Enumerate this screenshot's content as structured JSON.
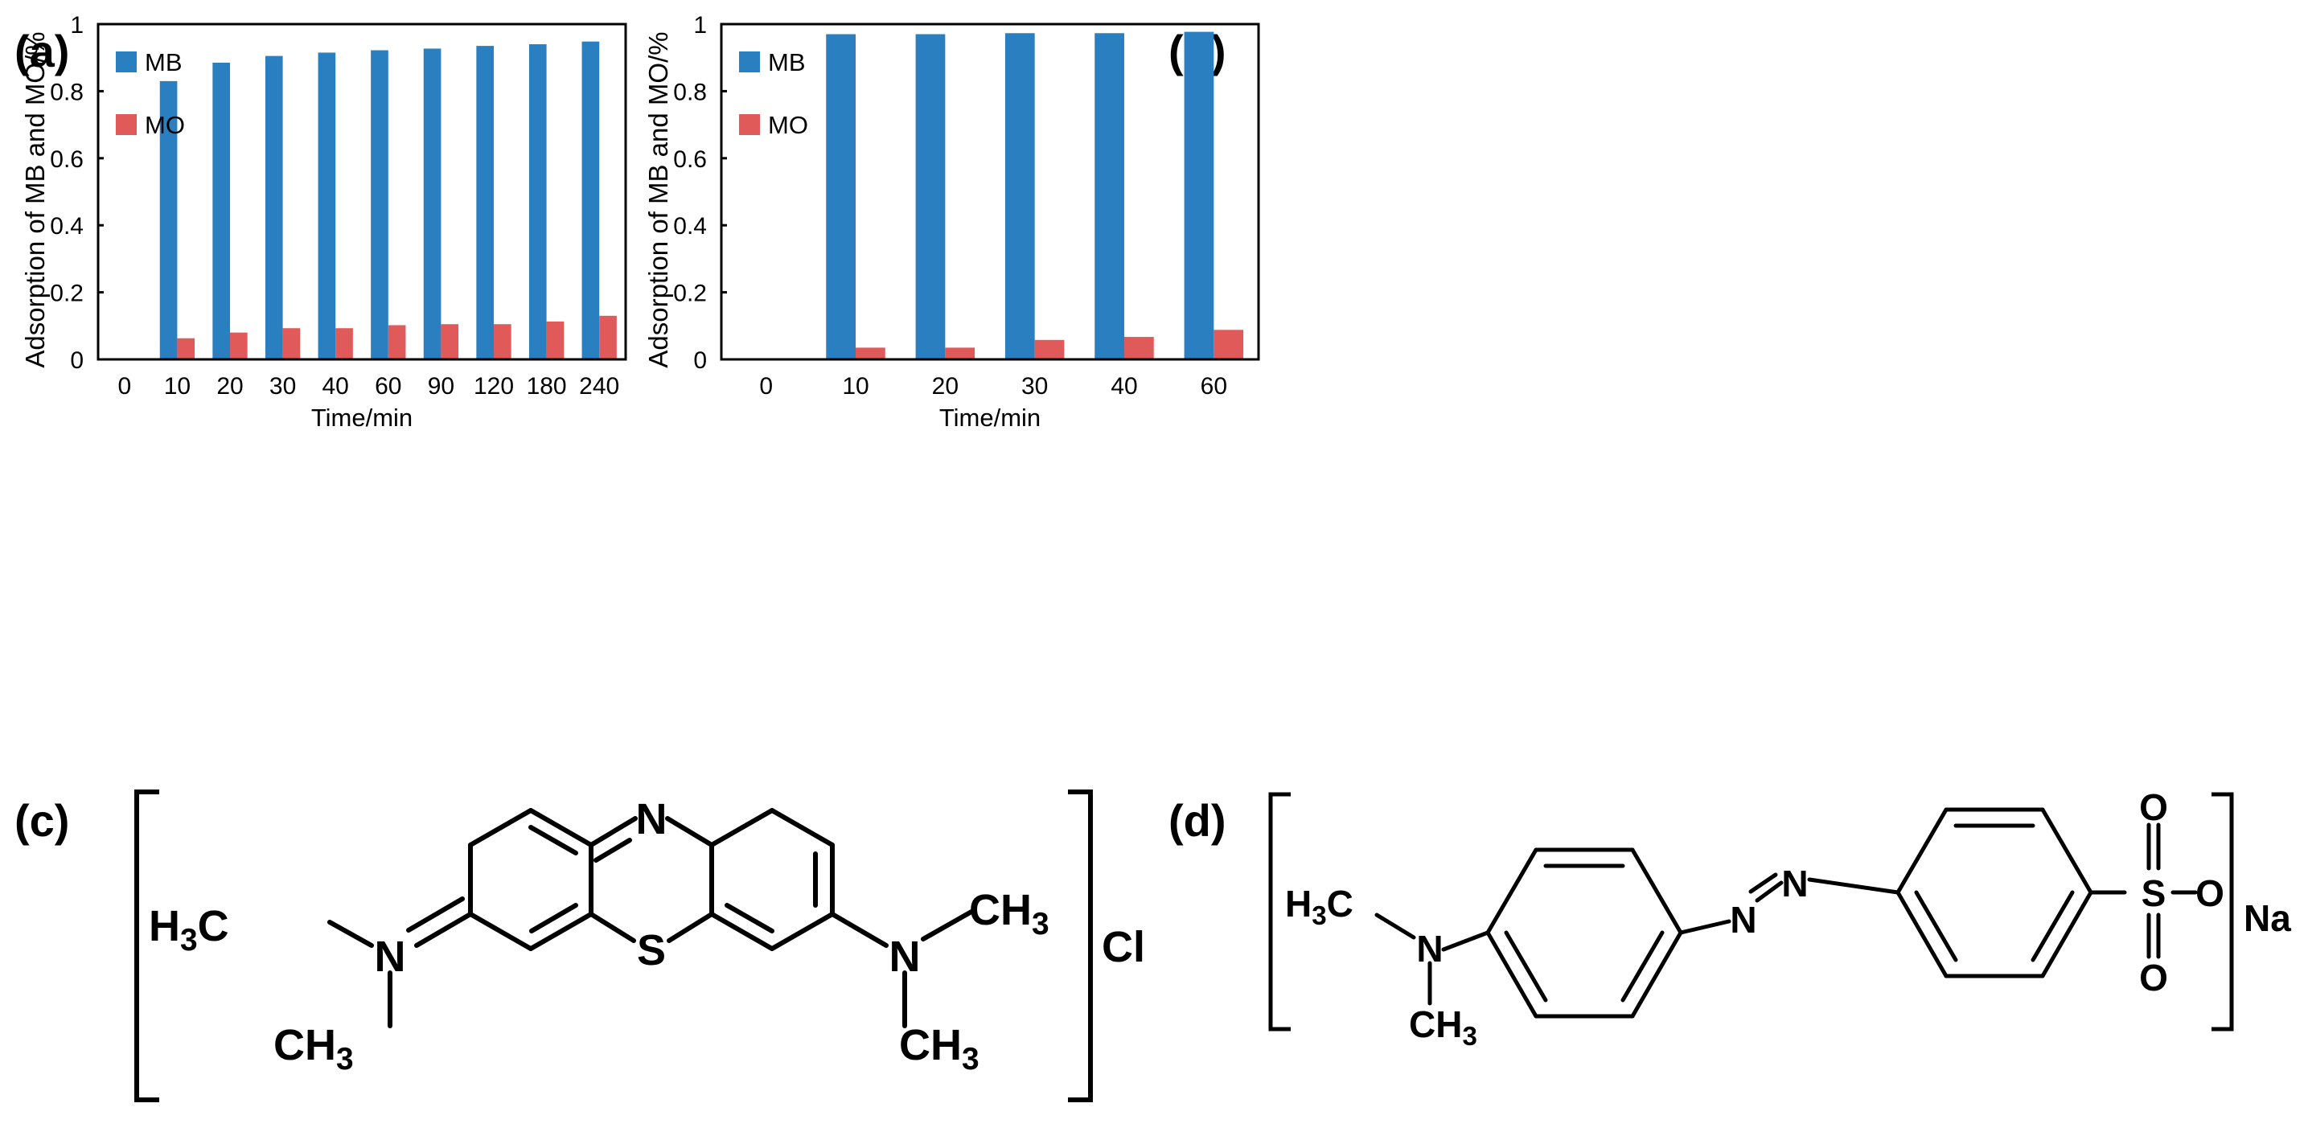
{
  "colors": {
    "mb": "#2a7fc1",
    "mo": "#e05a5a",
    "axis": "#000000"
  },
  "chart_data": [
    {
      "panel": "(a)",
      "type": "bar",
      "categories": [
        "0",
        "10",
        "20",
        "30",
        "40",
        "60",
        "90",
        "120",
        "180",
        "240"
      ],
      "series": [
        {
          "name": "MB",
          "values": [
            0,
            0.83,
            0.885,
            0.905,
            0.915,
            0.922,
            0.927,
            0.935,
            0.94,
            0.948
          ]
        },
        {
          "name": "MO",
          "values": [
            0,
            0.063,
            0.08,
            0.093,
            0.093,
            0.102,
            0.105,
            0.105,
            0.113,
            0.13
          ]
        }
      ],
      "xlabel": "Time/min",
      "ylabel": "Adsorption of MB and MO/%",
      "ylim": [
        0,
        1
      ],
      "yticks": [
        "0",
        "0.2",
        "0.4",
        "0.6",
        "0.8",
        "1"
      ],
      "legend": "top-left"
    },
    {
      "panel": "(b)",
      "type": "bar",
      "categories": [
        "0",
        "10",
        "20",
        "30",
        "40",
        "60"
      ],
      "series": [
        {
          "name": "MB",
          "values": [
            0,
            0.97,
            0.97,
            0.973,
            0.973,
            0.977
          ]
        },
        {
          "name": "MO",
          "values": [
            0,
            0.035,
            0.035,
            0.058,
            0.067,
            0.088
          ]
        }
      ],
      "xlabel": "Time/min",
      "ylabel": "Adsorption of MB and MO/%",
      "ylim": [
        0,
        1
      ],
      "yticks": [
        "0",
        "0.2",
        "0.4",
        "0.6",
        "0.8",
        "1"
      ],
      "legend": "top-left"
    }
  ],
  "structures": {
    "c": {
      "label": "(c)",
      "n_top": "N",
      "s_center": "S",
      "left_methyl_top": "H3C",
      "left_n": "N",
      "left_methyl_bottom": "CH3",
      "right_n": "N",
      "right_methyl_top": "CH3",
      "right_methyl_bottom": "CH3",
      "counter_ion": "Cl"
    },
    "d": {
      "label": "(d)",
      "methyl_top": "H3C",
      "amine_n": "N",
      "methyl_bottom": "CH3",
      "azo_n1": "N",
      "azo_n2": "N",
      "sulfur": "S",
      "oxygen_top": "O",
      "oxygen_right": "O",
      "oxygen_bottom": "O",
      "counter_ion": "Na"
    }
  }
}
